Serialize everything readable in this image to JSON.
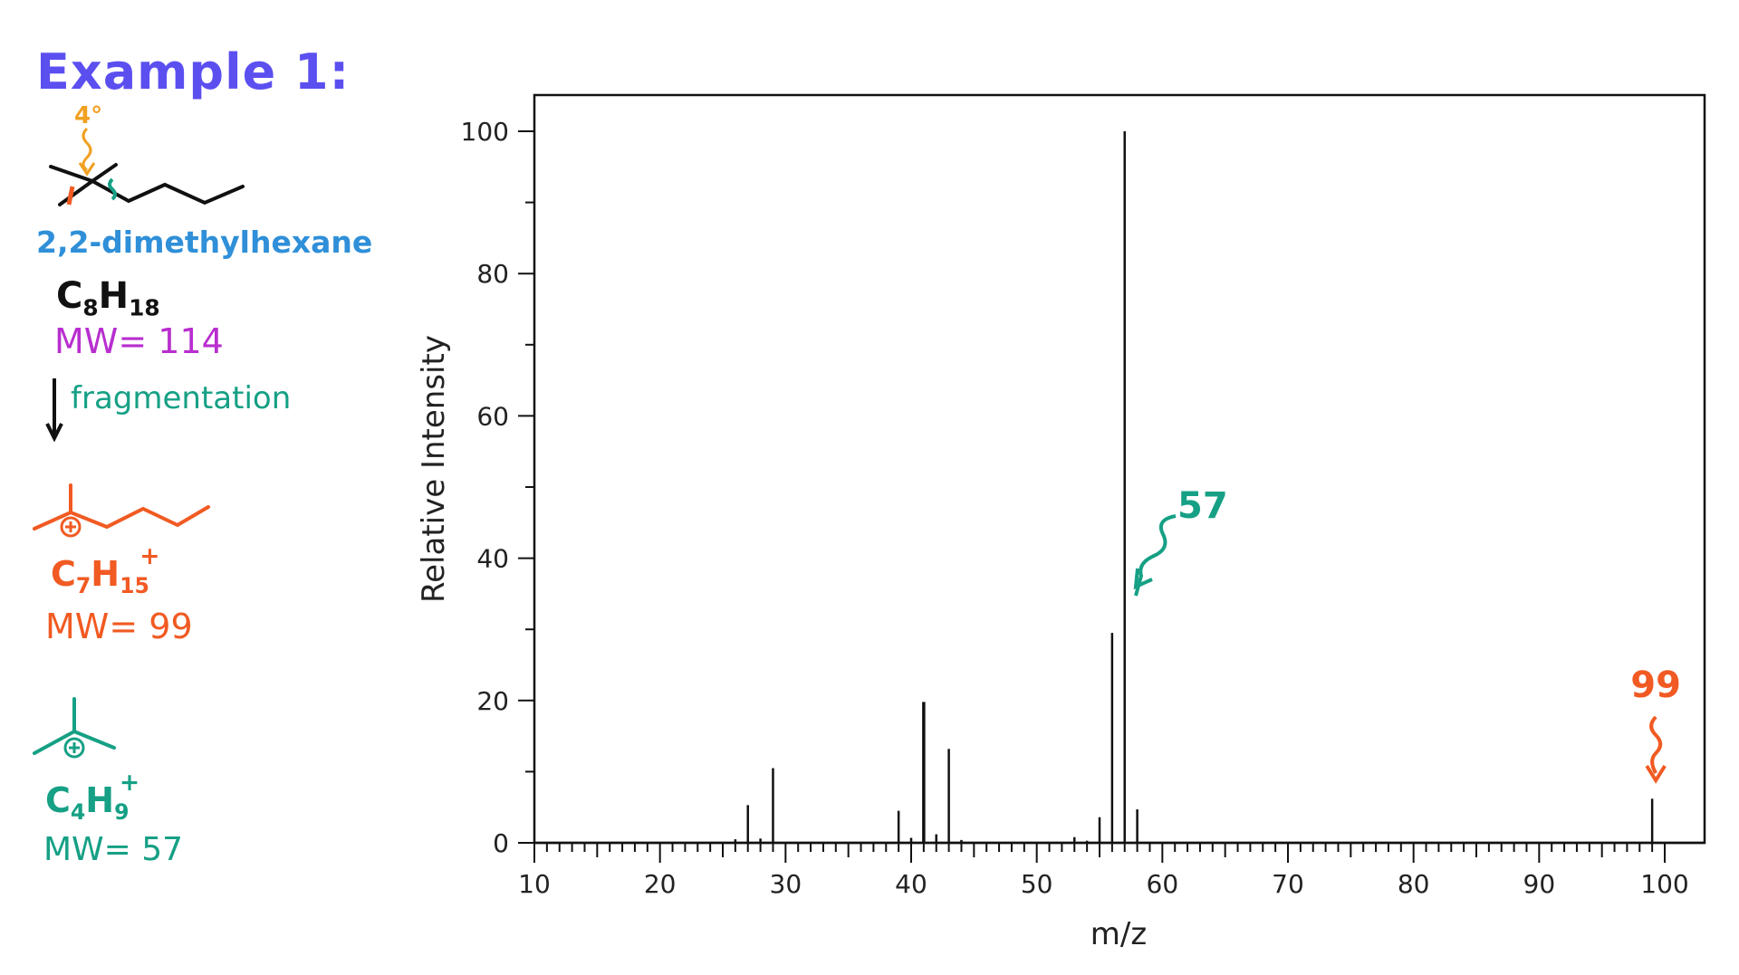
{
  "left_panel": {
    "title": "Example 1:",
    "quaternary_label": "4°",
    "compound_name": "2,2-dimethylhexane",
    "formula_parent": {
      "C": "C",
      "c_sub": "8",
      "H": "H",
      "h_sub": "18"
    },
    "mw_parent": "MW= 114",
    "fragmentation_label": "fragmentation",
    "formula_frag1": {
      "C": "C",
      "c_sub": "7",
      "H": "H",
      "h_sub": "15",
      "charge": "+"
    },
    "mw_frag1": "MW= 99",
    "formula_frag2": {
      "C": "C",
      "c_sub": "4",
      "H": "H",
      "h_sub": "9",
      "charge": "+"
    },
    "mw_frag2": "MW= 57",
    "colors": {
      "title": "#5b4ff0",
      "name": "#2f8fd8",
      "mw_parent": "#b82ecf",
      "orange": "#f15a22",
      "teal": "#16a085",
      "amber": "#f0a020"
    }
  },
  "chart_data": {
    "type": "bar",
    "xlabel": "m/z",
    "ylabel": "Relative Intensity",
    "xlim": [
      10,
      100
    ],
    "ylim": [
      0,
      100
    ],
    "x_ticks": [
      10,
      20,
      30,
      40,
      50,
      60,
      70,
      80,
      90,
      100
    ],
    "y_ticks": [
      0,
      20,
      40,
      60,
      80,
      100
    ],
    "grid": false,
    "peaks": [
      {
        "mz": 26,
        "intensity": 0.5
      },
      {
        "mz": 27,
        "intensity": 5.3
      },
      {
        "mz": 28,
        "intensity": 0.6
      },
      {
        "mz": 29,
        "intensity": 10.5
      },
      {
        "mz": 39,
        "intensity": 4.5
      },
      {
        "mz": 40,
        "intensity": 0.7
      },
      {
        "mz": 41,
        "intensity": 19.8
      },
      {
        "mz": 42,
        "intensity": 1.2
      },
      {
        "mz": 43,
        "intensity": 13.2
      },
      {
        "mz": 44,
        "intensity": 0.4
      },
      {
        "mz": 53,
        "intensity": 0.8
      },
      {
        "mz": 54,
        "intensity": 0.3
      },
      {
        "mz": 55,
        "intensity": 3.6
      },
      {
        "mz": 56,
        "intensity": 29.5
      },
      {
        "mz": 57,
        "intensity": 100
      },
      {
        "mz": 58,
        "intensity": 4.7
      },
      {
        "mz": 99,
        "intensity": 6.2
      }
    ],
    "annotations": [
      {
        "text": "57",
        "target_mz": 57,
        "color": "#16a085"
      },
      {
        "text": "99",
        "target_mz": 99,
        "color": "#f15a22"
      }
    ]
  }
}
